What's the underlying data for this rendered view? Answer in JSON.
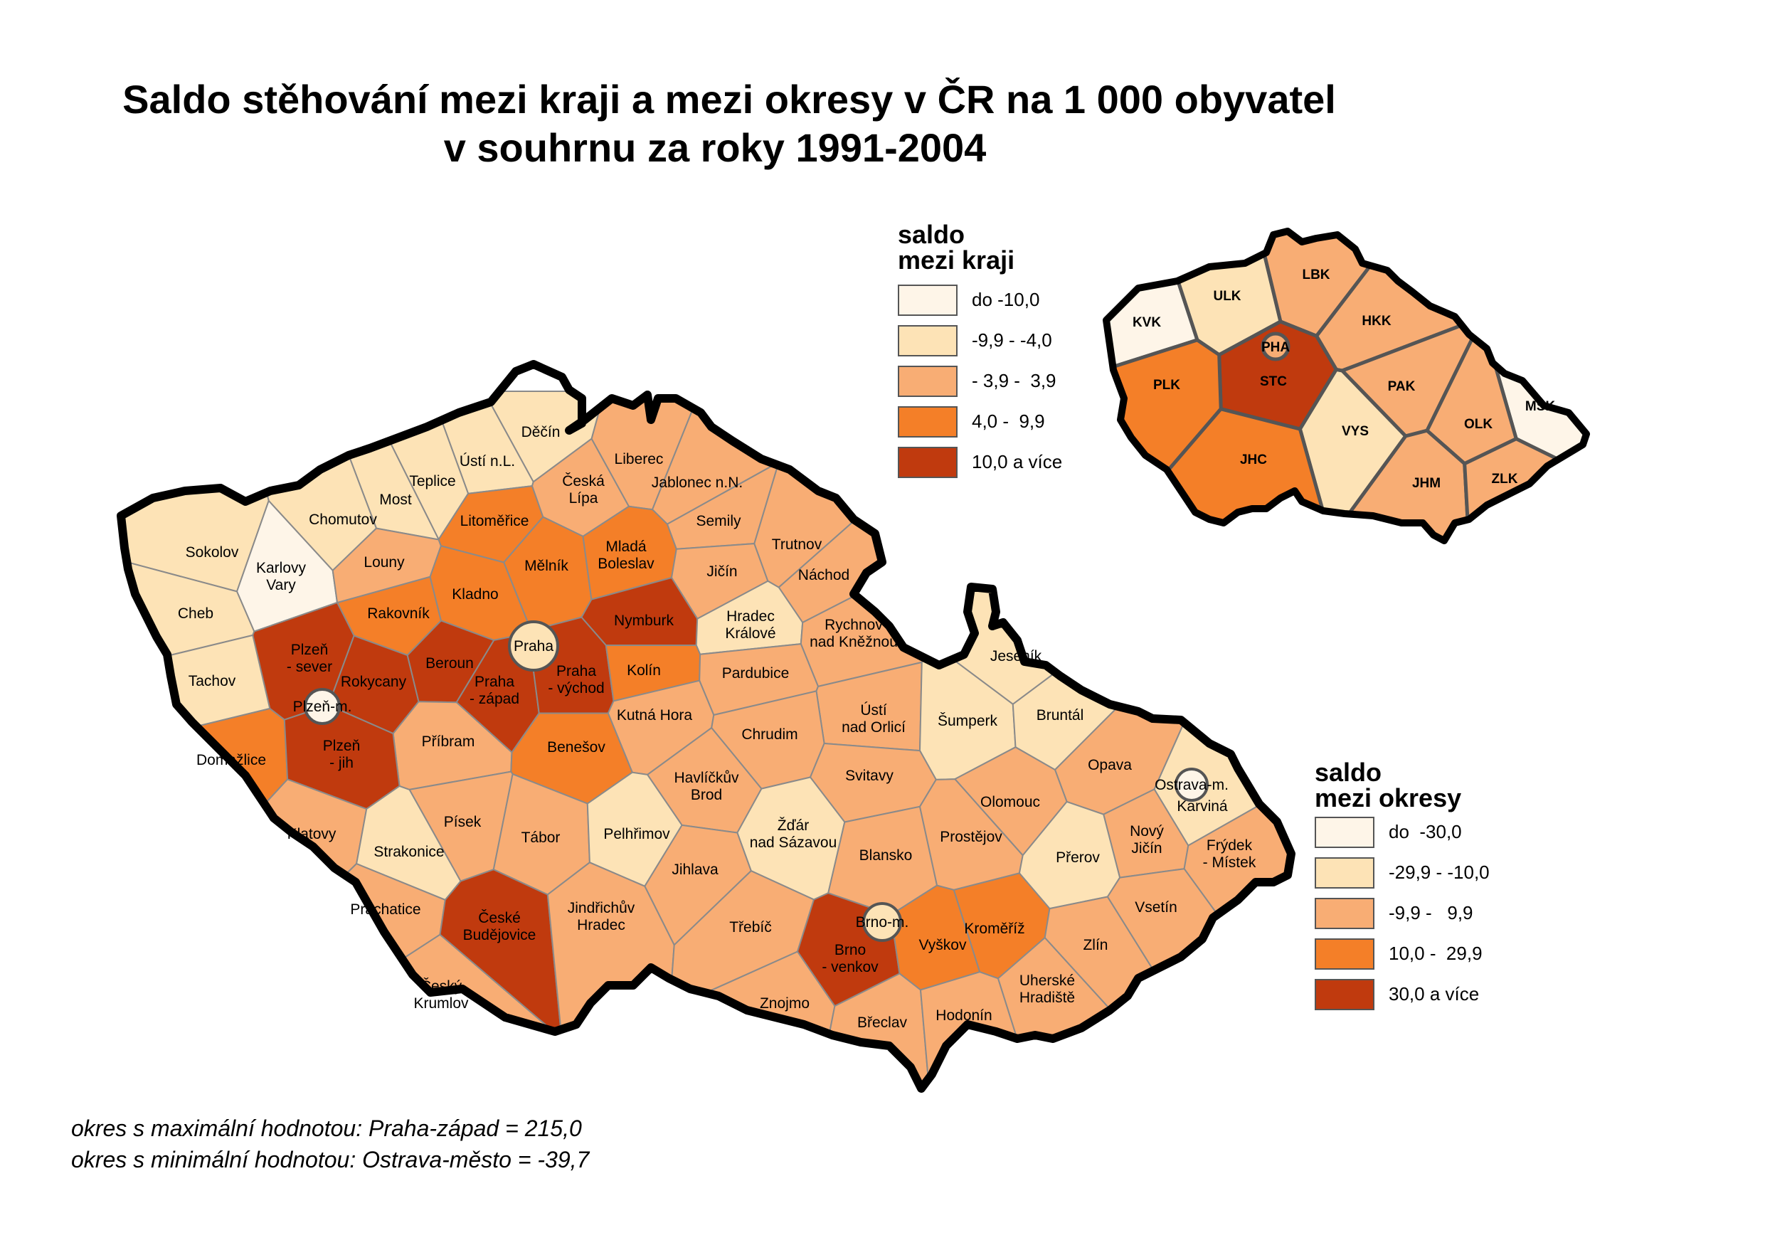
{
  "title": {
    "line1": "Saldo stěhování mezi kraji a mezi okresy v ČR na 1 000 obyvatel",
    "line2": "v souhrnu za roky 1991-2004"
  },
  "colors": {
    "class1": "#fef5e8",
    "class2": "#fde3b6",
    "class3": "#f8ad74",
    "class4": "#f47f28",
    "class5": "#c03a0e",
    "district_border": "#8a8a8a",
    "region_border": "#555555"
  },
  "legend_kraje": {
    "title_line1": "saldo",
    "title_line2": "mezi kraji",
    "items": [
      {
        "label": "do -10,0",
        "cls": "class1"
      },
      {
        "label": "-9,9 - -4,0",
        "cls": "class2"
      },
      {
        "label": "- 3,9 -  3,9",
        "cls": "class3"
      },
      {
        "label": "4,0 -  9,9",
        "cls": "class4"
      },
      {
        "label": "10,0 a více",
        "cls": "class5"
      }
    ]
  },
  "legend_okresy": {
    "title_line1": "saldo",
    "title_line2": "mezi okresy",
    "items": [
      {
        "label": "do  -30,0",
        "cls": "class1"
      },
      {
        "label": "-29,9 - -10,0",
        "cls": "class2"
      },
      {
        "label": "-9,9 -   9,9",
        "cls": "class3"
      },
      {
        "label": "10,0 -  29,9",
        "cls": "class4"
      },
      {
        "label": "30,0 a více",
        "cls": "class5"
      }
    ]
  },
  "districts": [
    {
      "name": "Děčín",
      "cls": "class2"
    },
    {
      "name": "Ústí n.L.",
      "cls": "class2"
    },
    {
      "name": "Teplice",
      "cls": "class2"
    },
    {
      "name": "Most",
      "cls": "class2"
    },
    {
      "name": "Chomutov",
      "cls": "class2"
    },
    {
      "name": "Sokolov",
      "cls": "class2"
    },
    {
      "name": "Karlovy Vary",
      "cls": "class1"
    },
    {
      "name": "Cheb",
      "cls": "class2"
    },
    {
      "name": "Louny",
      "cls": "class3"
    },
    {
      "name": "Litoměřice",
      "cls": "class4"
    },
    {
      "name": "Česká Lípa",
      "cls": "class3"
    },
    {
      "name": "Liberec",
      "cls": "class3"
    },
    {
      "name": "Jablonec n.N.",
      "cls": "class3"
    },
    {
      "name": "Semily",
      "cls": "class3"
    },
    {
      "name": "Mělník",
      "cls": "class4"
    },
    {
      "name": "Mladá Boleslav",
      "cls": "class4"
    },
    {
      "name": "Jičín",
      "cls": "class3"
    },
    {
      "name": "Trutnov",
      "cls": "class3"
    },
    {
      "name": "Náchod",
      "cls": "class3"
    },
    {
      "name": "Rakovník",
      "cls": "class4"
    },
    {
      "name": "Kladno",
      "cls": "class4"
    },
    {
      "name": "Nymburk",
      "cls": "class5"
    },
    {
      "name": "Hradec Králové",
      "cls": "class2"
    },
    {
      "name": "Rychnov nad Kněžnou",
      "cls": "class3"
    },
    {
      "name": "Praha",
      "cls": "class2"
    },
    {
      "name": "Plzeň - sever",
      "cls": "class5"
    },
    {
      "name": "Tachov",
      "cls": "class2"
    },
    {
      "name": "Rokycany",
      "cls": "class5"
    },
    {
      "name": "Beroun",
      "cls": "class5"
    },
    {
      "name": "Praha - západ",
      "cls": "class5"
    },
    {
      "name": "Praha - východ",
      "cls": "class5"
    },
    {
      "name": "Kolín",
      "cls": "class4"
    },
    {
      "name": "Pardubice",
      "cls": "class3"
    },
    {
      "name": "Ústí nad Orlicí",
      "cls": "class3"
    },
    {
      "name": "Jeseník",
      "cls": "class2"
    },
    {
      "name": "Šumperk",
      "cls": "class2"
    },
    {
      "name": "Bruntál",
      "cls": "class2"
    },
    {
      "name": "Plzeň-m.",
      "cls": "class1"
    },
    {
      "name": "Příbram",
      "cls": "class3"
    },
    {
      "name": "Kutná Hora",
      "cls": "class3"
    },
    {
      "name": "Chrudim",
      "cls": "class3"
    },
    {
      "name": "Domažlice",
      "cls": "class4"
    },
    {
      "name": "Plzeň - jih",
      "cls": "class5"
    },
    {
      "name": "Benešov",
      "cls": "class4"
    },
    {
      "name": "Havlíčkův Brod",
      "cls": "class3"
    },
    {
      "name": "Svitavy",
      "cls": "class3"
    },
    {
      "name": "Opava",
      "cls": "class3"
    },
    {
      "name": "Ostrava-m.",
      "cls": "class1"
    },
    {
      "name": "Karviná",
      "cls": "class2"
    },
    {
      "name": "Olomouc",
      "cls": "class3"
    },
    {
      "name": "Klatovy",
      "cls": "class3"
    },
    {
      "name": "Písek",
      "cls": "class3"
    },
    {
      "name": "Strakonice",
      "cls": "class2"
    },
    {
      "name": "Tábor",
      "cls": "class3"
    },
    {
      "name": "Pelhřimov",
      "cls": "class2"
    },
    {
      "name": "Žďár nad Sázavou",
      "cls": "class2"
    },
    {
      "name": "Jihlava",
      "cls": "class3"
    },
    {
      "name": "Blansko",
      "cls": "class3"
    },
    {
      "name": "Prostějov",
      "cls": "class3"
    },
    {
      "name": "Nový Jičín",
      "cls": "class3"
    },
    {
      "name": "Přerov",
      "cls": "class2"
    },
    {
      "name": "Frýdek - Místek",
      "cls": "class3"
    },
    {
      "name": "Prachatice",
      "cls": "class3"
    },
    {
      "name": "České Budějovice",
      "cls": "class5"
    },
    {
      "name": "Jindřichův Hradec",
      "cls": "class3"
    },
    {
      "name": "Třebíč",
      "cls": "class3"
    },
    {
      "name": "Brno-m.",
      "cls": "class2"
    },
    {
      "name": "Brno - venkov",
      "cls": "class5"
    },
    {
      "name": "Vyškov",
      "cls": "class4"
    },
    {
      "name": "Kroměříž",
      "cls": "class4"
    },
    {
      "name": "Zlín",
      "cls": "class3"
    },
    {
      "name": "Vsetín",
      "cls": "class3"
    },
    {
      "name": "Český Krumlov",
      "cls": "class3"
    },
    {
      "name": "Znojmo",
      "cls": "class3"
    },
    {
      "name": "Břeclav",
      "cls": "class3"
    },
    {
      "name": "Hodonín",
      "cls": "class3"
    },
    {
      "name": "Uherské Hradiště",
      "cls": "class3"
    }
  ],
  "regions": [
    {
      "code": "KVK",
      "cls": "class1"
    },
    {
      "code": "ULK",
      "cls": "class2"
    },
    {
      "code": "LBK",
      "cls": "class3"
    },
    {
      "code": "HKK",
      "cls": "class3"
    },
    {
      "code": "PHA",
      "cls": "class3"
    },
    {
      "code": "STC",
      "cls": "class5"
    },
    {
      "code": "PLK",
      "cls": "class4"
    },
    {
      "code": "PAK",
      "cls": "class3"
    },
    {
      "code": "MSK",
      "cls": "class1"
    },
    {
      "code": "OLK",
      "cls": "class3"
    },
    {
      "code": "VYS",
      "cls": "class2"
    },
    {
      "code": "JHC",
      "cls": "class4"
    },
    {
      "code": "JHM",
      "cls": "class3"
    },
    {
      "code": "ZLK",
      "cls": "class3"
    }
  ],
  "notes": {
    "max": "okres s maximální hodnotou: Praha-západ = 215,0",
    "min": "okres s minimální hodnotou: Ostrava-město = -39,7"
  }
}
